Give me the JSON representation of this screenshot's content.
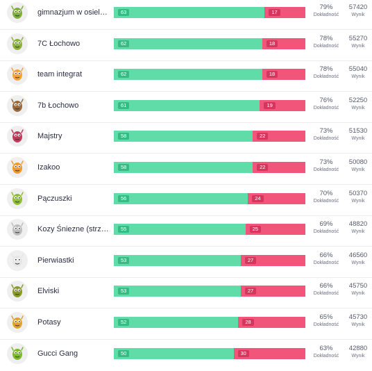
{
  "leaderboard": {
    "accuracy_label": "Dokładność",
    "score_label": "Wynik",
    "colors": {
      "correct": "#5fdca7",
      "wrong": "#f2557a",
      "correct_badge": "#36bb85",
      "wrong_badge": "#d4365e"
    },
    "rows": [
      {
        "name": "gimnazjum w osielsku",
        "correct": 63,
        "wrong": 17,
        "accuracy": "79%",
        "score": "57420",
        "avatar": "frog-avatar-icon",
        "color": "#7fae3a"
      },
      {
        "name": "7C Łochowo",
        "correct": 62,
        "wrong": 18,
        "accuracy": "78%",
        "score": "55270",
        "avatar": "green-monster-avatar-icon",
        "color": "#8bb33c"
      },
      {
        "name": "team integrat",
        "correct": 62,
        "wrong": 18,
        "accuracy": "78%",
        "score": "55040",
        "avatar": "sun-monster-avatar-icon",
        "color": "#f2a23a"
      },
      {
        "name": "7b Łochowo",
        "correct": 61,
        "wrong": 19,
        "accuracy": "76%",
        "score": "52250",
        "avatar": "brown-creature-avatar-icon",
        "color": "#9a6a3a"
      },
      {
        "name": "Majstry",
        "correct": 58,
        "wrong": 22,
        "accuracy": "73%",
        "score": "51530",
        "avatar": "bird-avatar-icon",
        "color": "#c23a5a"
      },
      {
        "name": "Izakoo",
        "correct": 58,
        "wrong": 22,
        "accuracy": "73%",
        "score": "50080",
        "avatar": "orange-monster-avatar-icon",
        "color": "#f09a2e"
      },
      {
        "name": "Pączuszki",
        "correct": 56,
        "wrong": 24,
        "accuracy": "70%",
        "score": "50370",
        "avatar": "worm-avatar-icon",
        "color": "#8fbf34"
      },
      {
        "name": "Kozy Śniezne (strzel…",
        "correct": 55,
        "wrong": 25,
        "accuracy": "69%",
        "score": "48820",
        "avatar": "goat-avatar-icon",
        "color": "#bdbdbd"
      },
      {
        "name": "Pierwiastki",
        "correct": 53,
        "wrong": 27,
        "accuracy": "66%",
        "score": "46560",
        "avatar": "ghost-avatar-icon",
        "color": "#e6e6e6"
      },
      {
        "name": "Elviski",
        "correct": 53,
        "wrong": 27,
        "accuracy": "66%",
        "score": "45750",
        "avatar": "dragon-avatar-icon",
        "color": "#8a9a2a"
      },
      {
        "name": "Potasy",
        "correct": 52,
        "wrong": 28,
        "accuracy": "65%",
        "score": "45730",
        "avatar": "orange-dino-avatar-icon",
        "color": "#e0a32a"
      },
      {
        "name": "Gucci Gang",
        "correct": 50,
        "wrong": 30,
        "accuracy": "63%",
        "score": "42880",
        "avatar": "green-alien-avatar-icon",
        "color": "#7bbb2c"
      }
    ]
  }
}
